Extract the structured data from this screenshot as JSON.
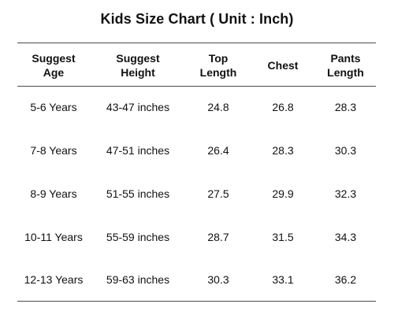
{
  "title": "Kids Size Chart ( Unit : Inch)",
  "table": {
    "headers": [
      [
        "Suggest",
        "Age"
      ],
      [
        "Suggest",
        "Height"
      ],
      [
        "Top",
        "Length"
      ],
      [
        "Chest"
      ],
      [
        "Pants",
        "Length"
      ]
    ],
    "rows": [
      [
        "5-6 Years",
        "43-47 inches",
        "24.8",
        "26.8",
        "28.3"
      ],
      [
        "7-8 Years",
        "47-51 inches",
        "26.4",
        "28.3",
        "30.3"
      ],
      [
        "8-9 Years",
        "51-55 inches",
        "27.5",
        "29.9",
        "32.3"
      ],
      [
        "10-11 Years",
        "55-59 inches",
        "28.7",
        "31.5",
        "34.3"
      ],
      [
        "12-13 Years",
        "59-63 inches",
        "30.3",
        "33.1",
        "36.2"
      ]
    ]
  }
}
